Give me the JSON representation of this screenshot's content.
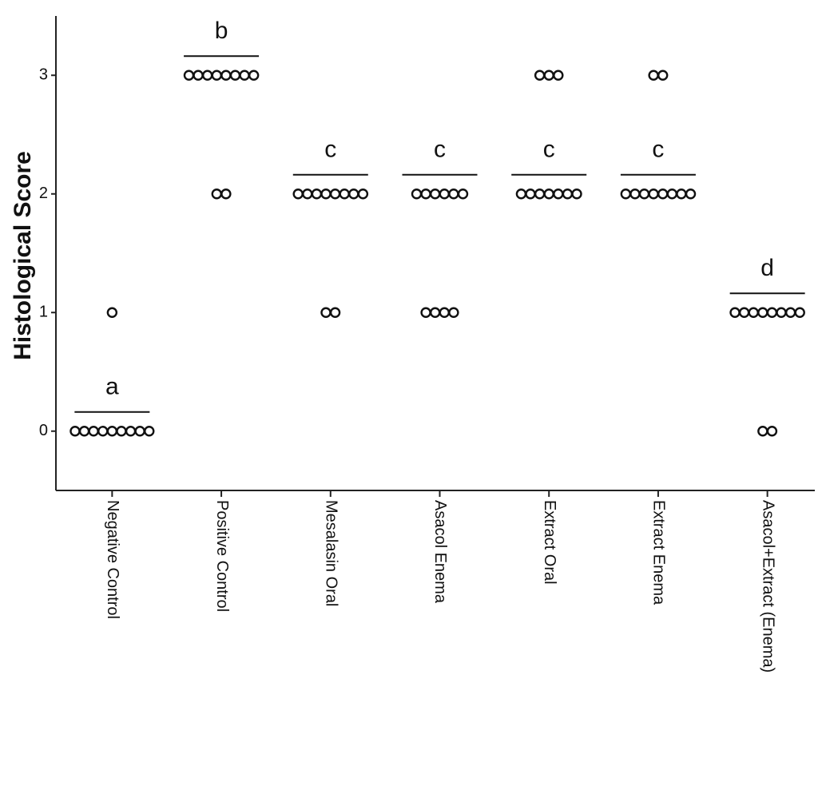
{
  "chart_data": {
    "type": "dot",
    "y_label": "Histological Score",
    "categories": [
      "Negative Control",
      "Positive Control",
      "Mesalasin Oral",
      "Asacol Enema",
      "Extract Oral",
      "Extract Enema",
      "Asacol+Extract  (Enema)"
    ],
    "values": [
      [
        0,
        0,
        0,
        0,
        0,
        0,
        0,
        0,
        0,
        1
      ],
      [
        3,
        3,
        3,
        3,
        3,
        3,
        3,
        3,
        2,
        2
      ],
      [
        2,
        2,
        2,
        2,
        2,
        2,
        2,
        2,
        1,
        1
      ],
      [
        2,
        2,
        2,
        2,
        2,
        2,
        1,
        1,
        1,
        1
      ],
      [
        3,
        3,
        3,
        2,
        2,
        2,
        2,
        2,
        2,
        2
      ],
      [
        3,
        3,
        2,
        2,
        2,
        2,
        2,
        2,
        2,
        2
      ],
      [
        1,
        1,
        1,
        1,
        1,
        1,
        1,
        1,
        0,
        0
      ]
    ],
    "annotations": [
      "a",
      "b",
      "c",
      "c",
      "c",
      "c",
      "d"
    ],
    "ylim": [
      -0.5,
      3.5
    ],
    "yticks": [
      0,
      1,
      2,
      3
    ]
  }
}
